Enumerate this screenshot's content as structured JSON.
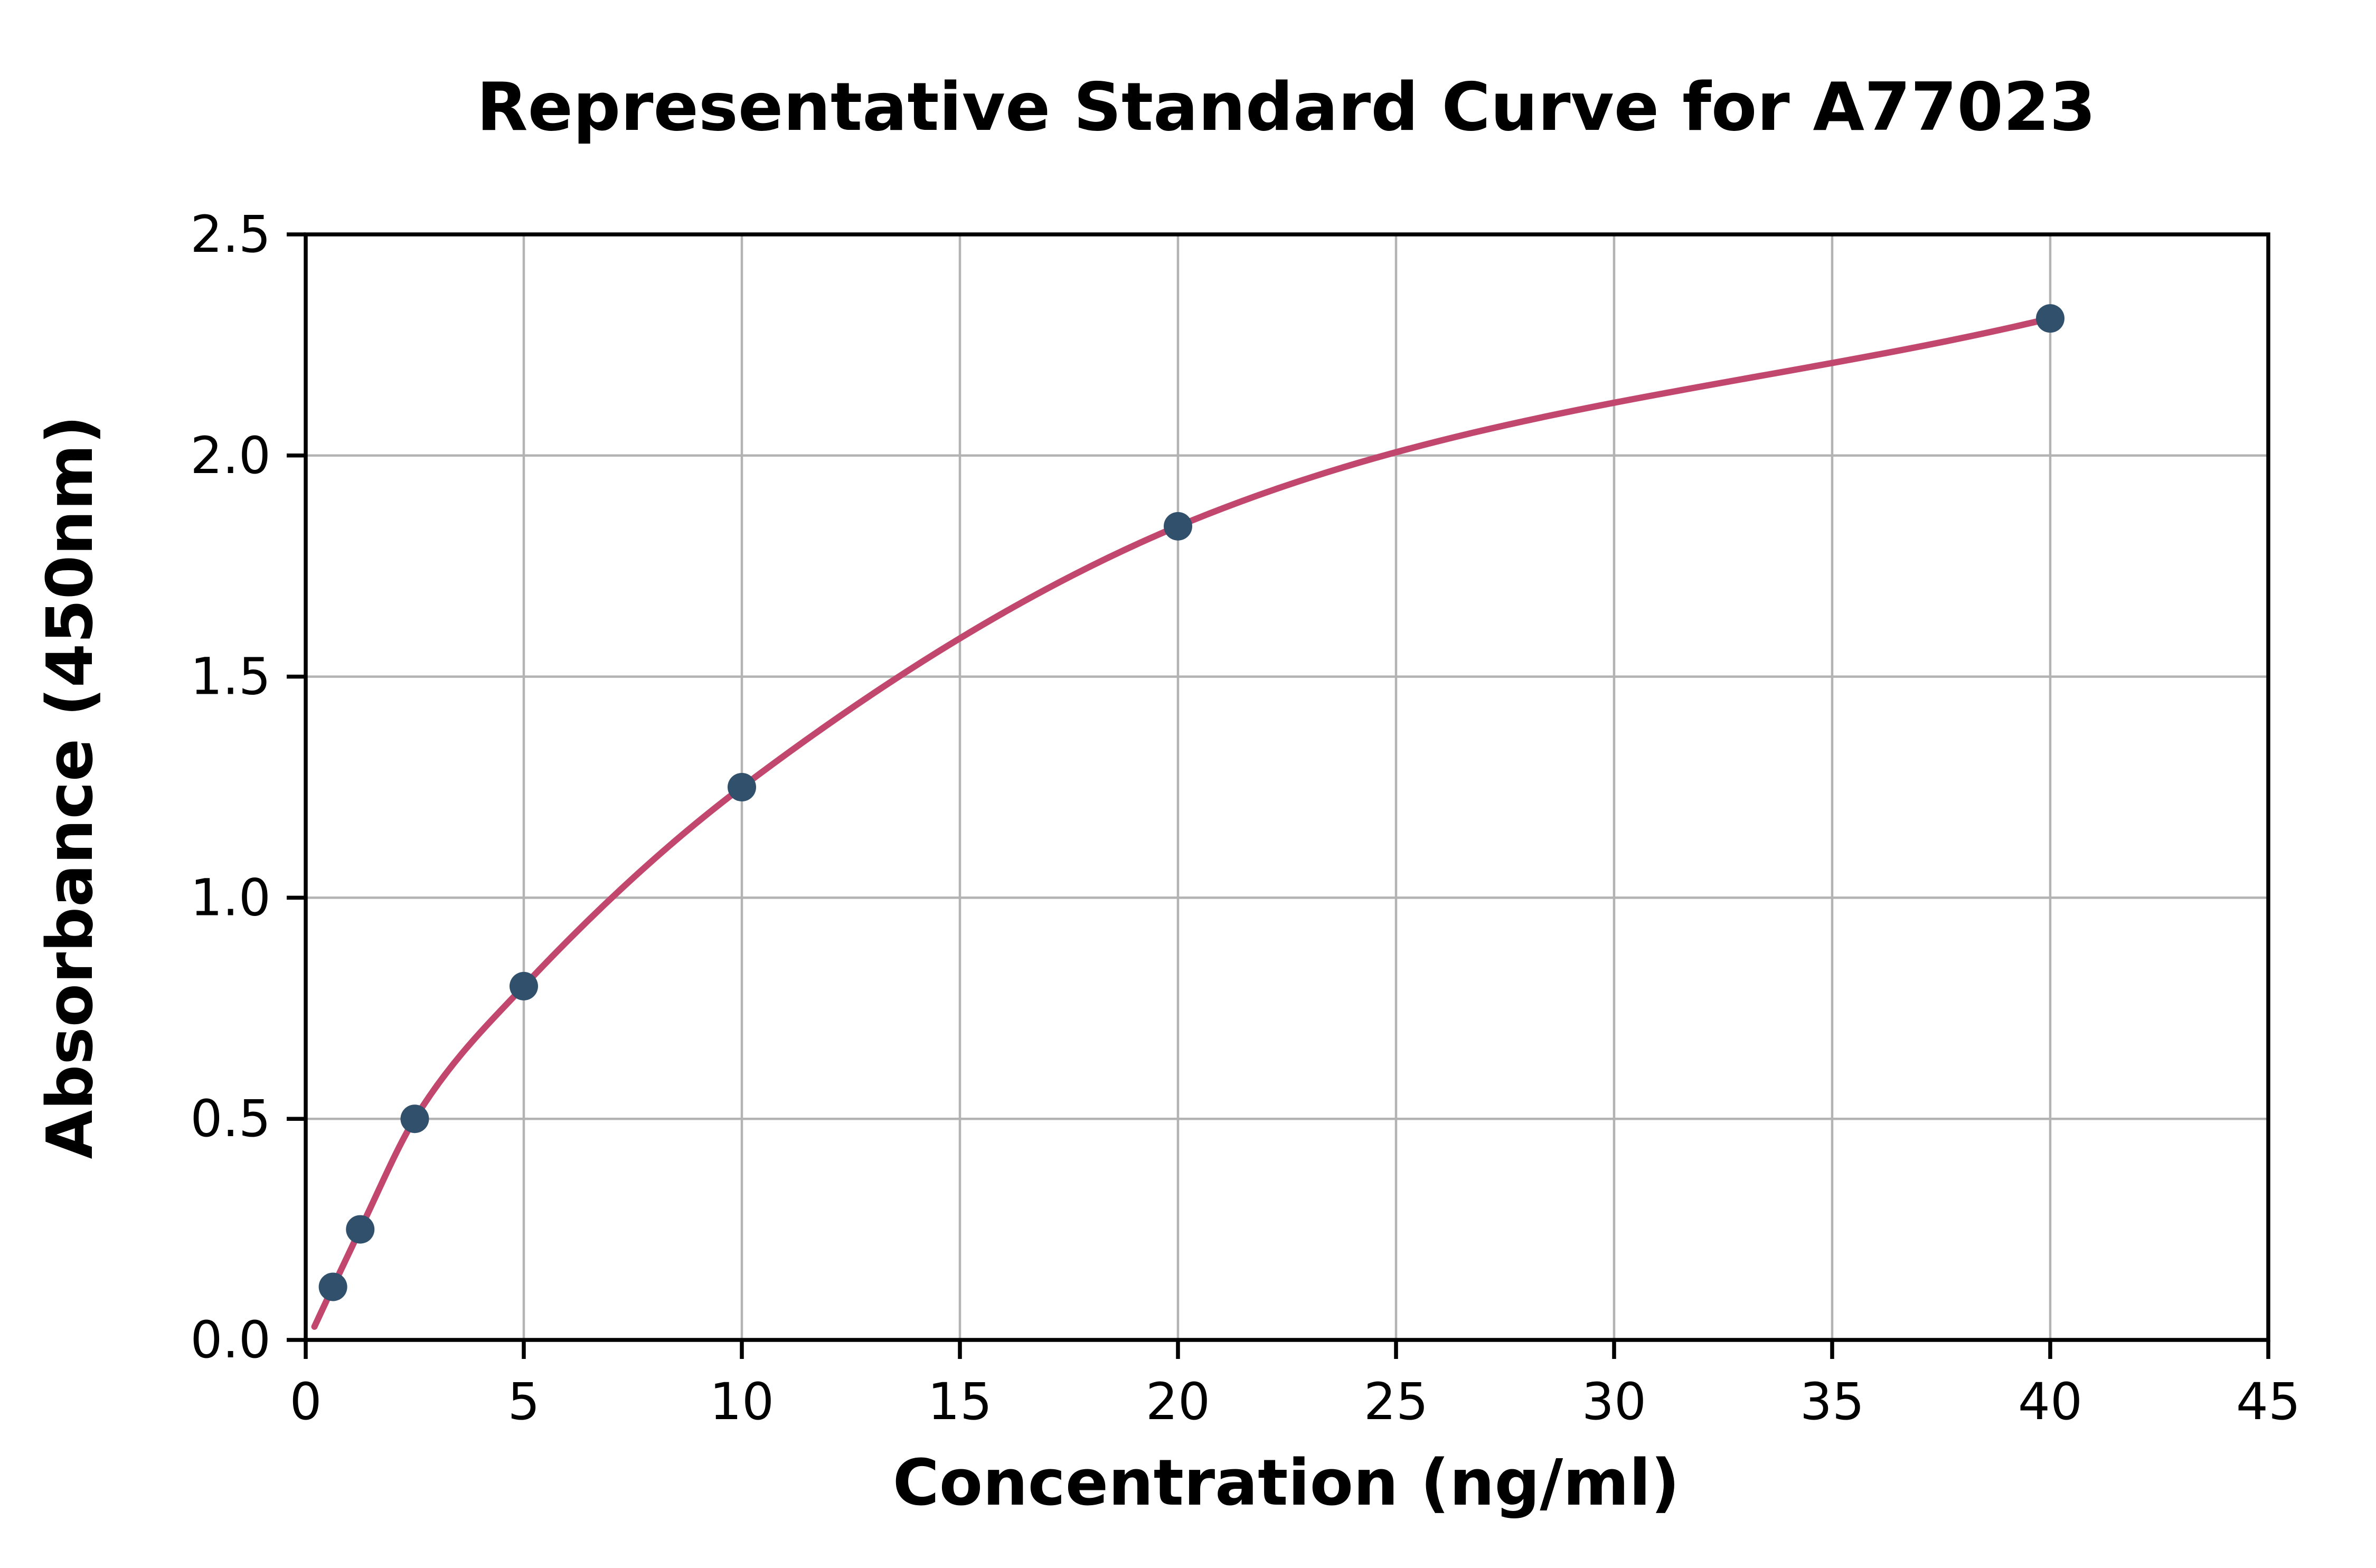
{
  "chart_data": {
    "type": "scatter",
    "title": "Representative Standard Curve for A77023",
    "xlabel": "Concentration (ng/ml)",
    "ylabel": "Absorbance (450nm)",
    "xlim": [
      0,
      45
    ],
    "ylim": [
      0,
      2.5
    ],
    "xticks": [
      0,
      5,
      10,
      15,
      20,
      25,
      30,
      35,
      40,
      45
    ],
    "xtick_labels": [
      "0",
      "5",
      "10",
      "15",
      "20",
      "25",
      "30",
      "35",
      "40",
      "45"
    ],
    "yticks": [
      0,
      0.5,
      1.0,
      1.5,
      2.0,
      2.5
    ],
    "ytick_labels": [
      "0.0",
      "0.5",
      "1.0",
      "1.5",
      "2.0",
      "2.5"
    ],
    "grid": true,
    "legend": "none",
    "series": [
      {
        "name": "standard-points",
        "type": "scatter",
        "x": [
          0.625,
          1.25,
          2.5,
          5,
          10,
          20,
          40
        ],
        "y": [
          0.12,
          0.25,
          0.5,
          0.8,
          1.25,
          1.84,
          2.31
        ],
        "color": "#31506b",
        "marker_radius": 9
      },
      {
        "name": "fitted-curve",
        "type": "line",
        "x": [
          0.2,
          0.625,
          1.25,
          2.5,
          5,
          10,
          20,
          40
        ],
        "y": [
          0.03,
          0.12,
          0.25,
          0.5,
          0.8,
          1.25,
          1.84,
          2.31
        ],
        "color": "#c2476f",
        "line_width": 4
      }
    ],
    "colors": {
      "background": "#ffffff",
      "grid": "#b3b3b3",
      "axis": "#000000",
      "text": "#000000"
    }
  }
}
